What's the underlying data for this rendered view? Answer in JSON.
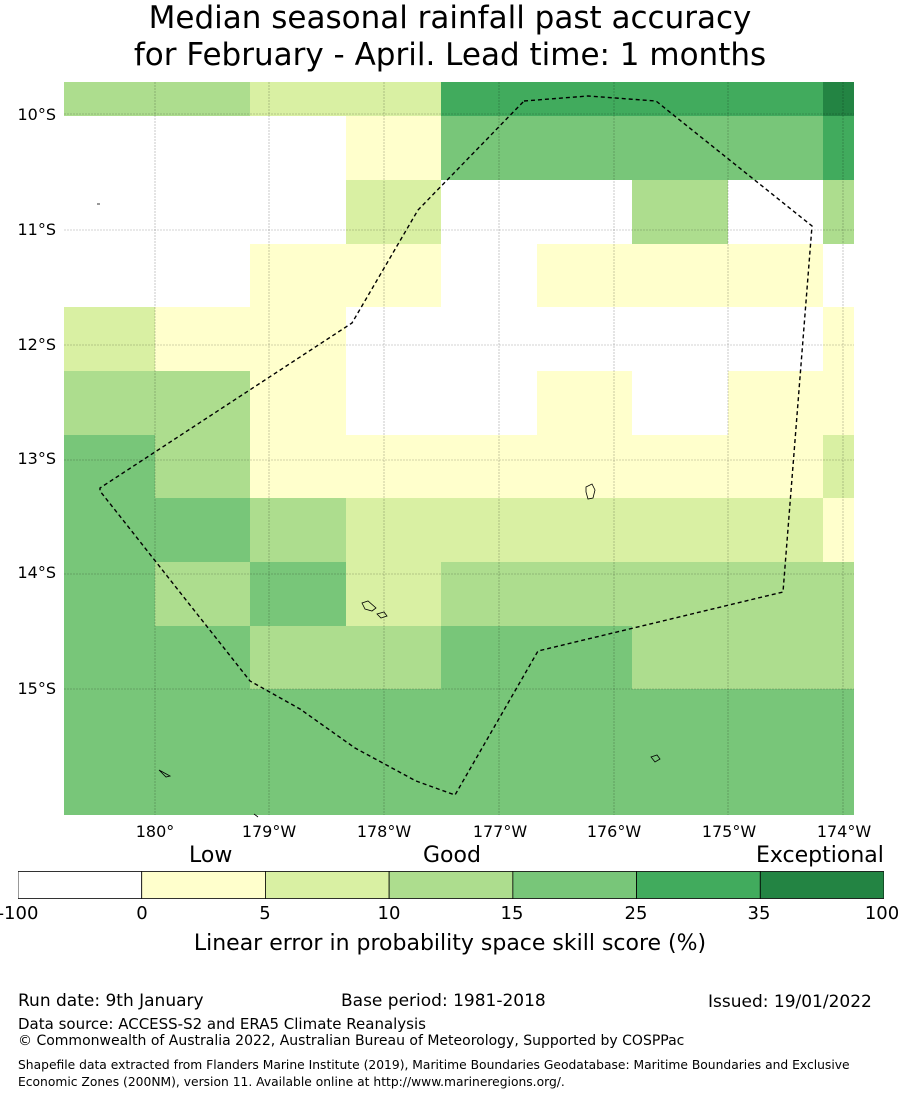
{
  "title": {
    "line1": "Median seasonal rainfall past accuracy",
    "line2": "for February - April. Lead time: 1 months"
  },
  "map": {
    "y_axis_labels": [
      "10°S",
      "11°S",
      "12°S",
      "13°S",
      "14°S",
      "15°S"
    ],
    "x_axis_labels": [
      "180°",
      "179°W",
      "178°W",
      "177°W",
      "176°W",
      "175°W",
      "174°W"
    ],
    "class_colors": [
      "#ffffff",
      "#ffffcc",
      "#d9f0a3",
      "#addd8e",
      "#78c679",
      "#41ab5d",
      "#238443"
    ],
    "grid_class_rows": [
      [
        3,
        3,
        2,
        2,
        5,
        5,
        5,
        5,
        6
      ],
      [
        0,
        0,
        0,
        1,
        4,
        4,
        4,
        4,
        5
      ],
      [
        0,
        0,
        0,
        2,
        0,
        0,
        3,
        0,
        3
      ],
      [
        0,
        0,
        1,
        1,
        0,
        1,
        1,
        1,
        0
      ],
      [
        2,
        1,
        1,
        0,
        0,
        0,
        0,
        0,
        1
      ],
      [
        3,
        3,
        1,
        0,
        0,
        1,
        0,
        1,
        1
      ],
      [
        4,
        3,
        1,
        1,
        1,
        1,
        1,
        1,
        2
      ],
      [
        4,
        4,
        3,
        2,
        2,
        2,
        2,
        2,
        1
      ],
      [
        4,
        3,
        4,
        2,
        3,
        3,
        3,
        3,
        3
      ],
      [
        4,
        4,
        3,
        3,
        4,
        4,
        3,
        3,
        3
      ],
      [
        4,
        4,
        4,
        4,
        4,
        4,
        4,
        4,
        4
      ],
      [
        4,
        4,
        4,
        4,
        4,
        4,
        4,
        4,
        4
      ]
    ]
  },
  "colorbar": {
    "categories": [
      "Low",
      "Good",
      "Exceptional"
    ],
    "ticks": [
      "-100",
      "0",
      "5",
      "10",
      "15",
      "25",
      "35",
      "100"
    ],
    "label": "Linear error in probability space skill score (%)"
  },
  "footer": {
    "run_date": "Run date: 9th January",
    "base_period": "Base period: 1981-2018",
    "issued": "Issued: 19/01/2022",
    "data_source": "Data source: ACCESS-S2 and ERA5 Climate Reanalysis",
    "copyright": "© Commonwealth of Australia 2022, Australian Bureau of Meteorology, Supported by COSPPac",
    "shapefile_note": "Shapefile data extracted from Flanders Marine Institute (2019), Maritime Boundaries Geodatabase: Maritime Boundaries and Exclusive Economic Zones (200NM), version 11. Available online at http://www.marineregions.org/."
  }
}
